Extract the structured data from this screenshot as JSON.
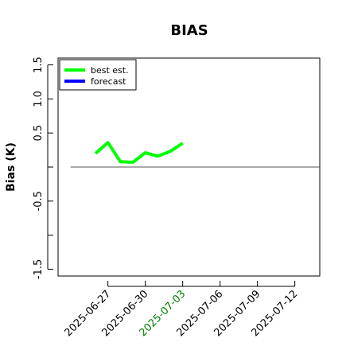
{
  "chart_data": {
    "type": "line",
    "title": "BIAS",
    "xlabel": "",
    "ylabel": "Bias (K)",
    "ylim": [
      -1.6,
      1.6
    ],
    "yticks": [
      "-1.5",
      "-0.5",
      "0.5",
      "1.0",
      "1.5"
    ],
    "ytick_values": [
      -1.5,
      -0.5,
      0.5,
      1.0,
      1.5
    ],
    "ytick_minor_values": [
      -1.0,
      0.0
    ],
    "xlim": [
      "2025-06-23",
      "2025-07-14"
    ],
    "xticks": [
      "2025-06-27",
      "2025-06-30",
      "2025-07-03",
      "2025-07-06",
      "2025-07-09",
      "2025-07-12"
    ],
    "highlight_xtick": "2025-07-03",
    "highlight_color": "#008000",
    "zero_line": true,
    "legend": {
      "placement": "top-left",
      "entries": [
        "best est.",
        "forecast"
      ]
    },
    "series": [
      {
        "name": "best est.",
        "color": "#00ff00",
        "x": [
          "2025-06-26",
          "2025-06-27",
          "2025-06-28",
          "2025-06-29",
          "2025-06-30",
          "2025-07-01",
          "2025-07-02",
          "2025-07-03"
        ],
        "y": [
          0.2,
          0.36,
          0.08,
          0.07,
          0.21,
          0.16,
          0.23,
          0.35
        ]
      },
      {
        "name": "forecast",
        "color": "#0000ff",
        "x": [],
        "y": []
      }
    ]
  }
}
